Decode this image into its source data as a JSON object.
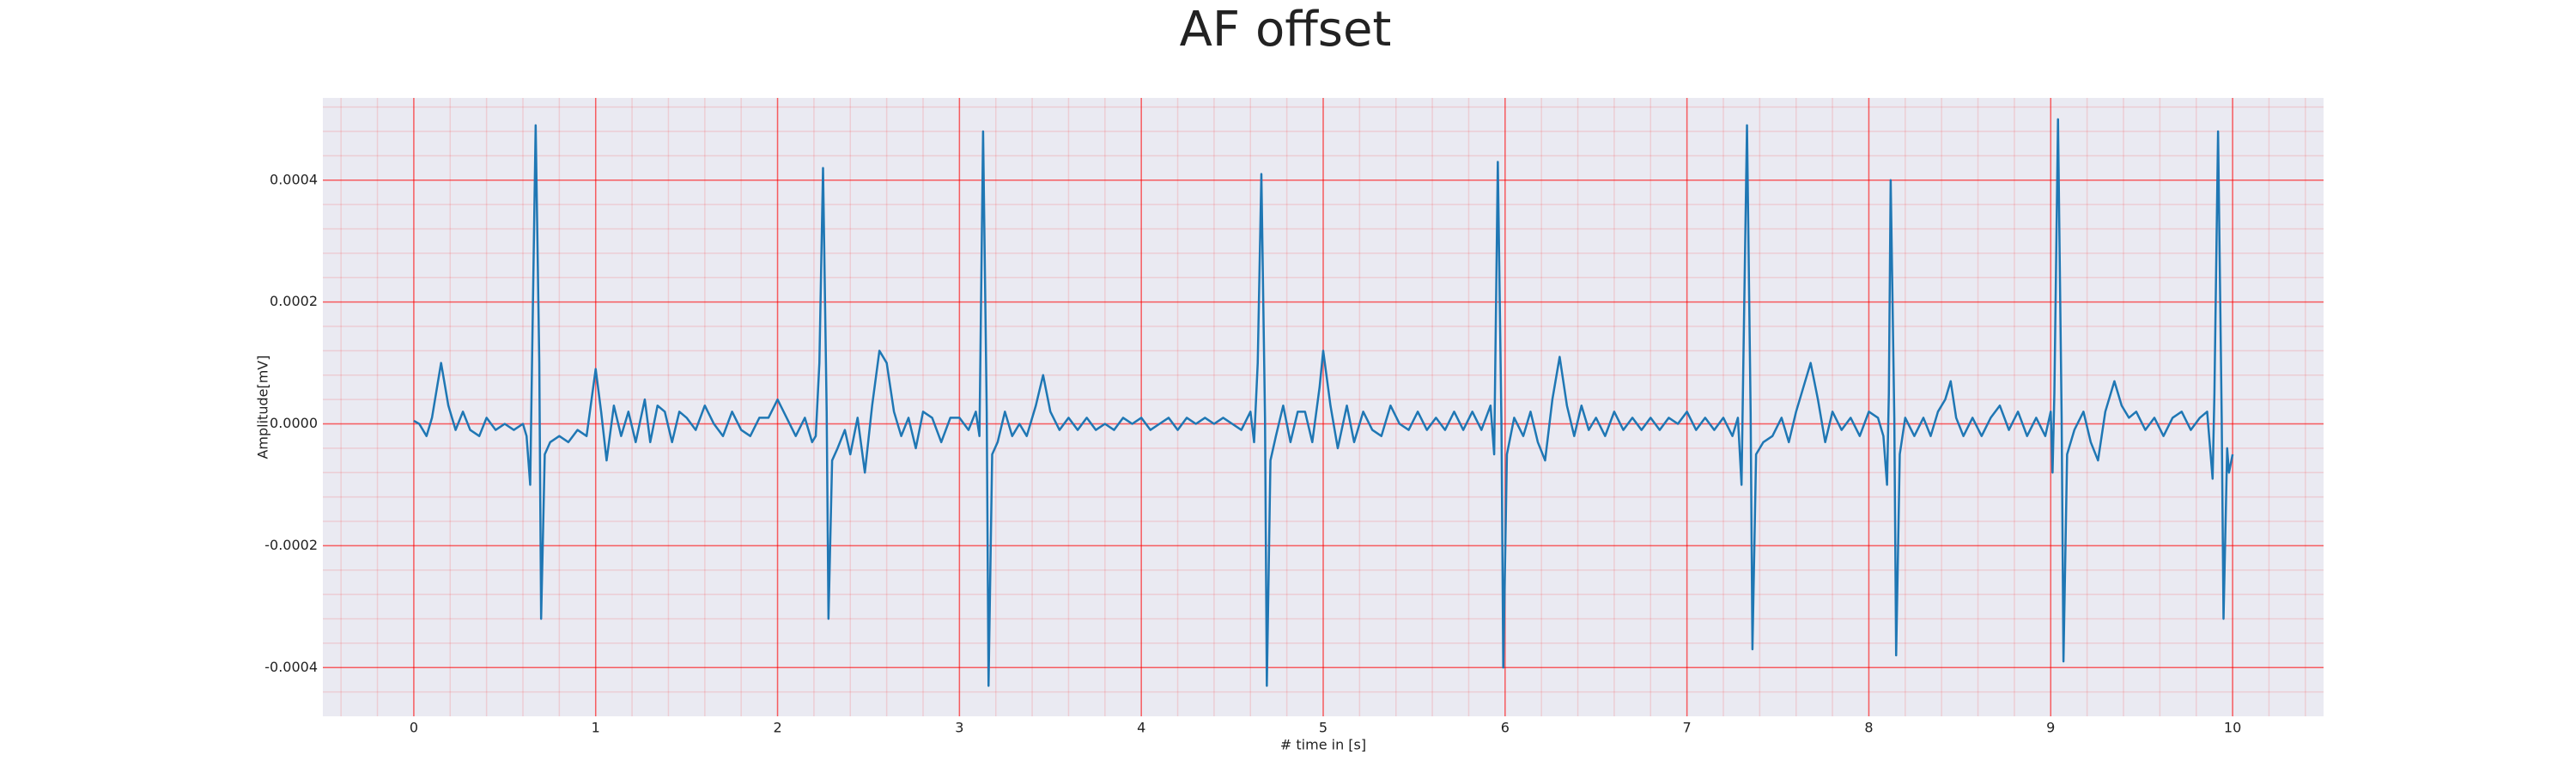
{
  "chart_data": {
    "type": "line",
    "title": "AF offset",
    "xlabel": "# time in [s]",
    "ylabel": "Amplitude[mV]",
    "x": [
      0,
      0.03,
      0.07,
      0.1,
      0.15,
      0.19,
      0.23,
      0.27,
      0.31,
      0.36,
      0.4,
      0.45,
      0.5,
      0.55,
      0.6,
      0.62,
      0.64,
      0.65,
      0.67,
      0.69,
      0.7,
      0.72,
      0.75,
      0.8,
      0.85,
      0.9,
      0.95,
      1,
      1.03,
      1.06,
      1.1,
      1.14,
      1.18,
      1.22,
      1.27,
      1.3,
      1.34,
      1.38,
      1.42,
      1.46,
      1.5,
      1.55,
      1.6,
      1.65,
      1.7,
      1.75,
      1.8,
      1.85,
      1.9,
      1.95,
      2,
      2.05,
      2.1,
      2.15,
      2.19,
      2.21,
      2.23,
      2.25,
      2.27,
      2.28,
      2.3,
      2.33,
      2.37,
      2.4,
      2.44,
      2.48,
      2.52,
      2.56,
      2.6,
      2.64,
      2.68,
      2.72,
      2.76,
      2.8,
      2.85,
      2.9,
      2.95,
      3,
      3.05,
      3.09,
      3.11,
      3.13,
      3.15,
      3.16,
      3.18,
      3.21,
      3.25,
      3.29,
      3.33,
      3.37,
      3.42,
      3.46,
      3.5,
      3.55,
      3.6,
      3.65,
      3.7,
      3.75,
      3.8,
      3.85,
      3.9,
      3.95,
      4,
      4.05,
      4.1,
      4.15,
      4.2,
      4.25,
      4.3,
      4.35,
      4.4,
      4.45,
      4.5,
      4.55,
      4.6,
      4.62,
      4.64,
      4.66,
      4.68,
      4.69,
      4.71,
      4.74,
      4.78,
      4.82,
      4.86,
      4.9,
      4.94,
      4.98,
      5,
      5.04,
      5.08,
      5.13,
      5.17,
      5.22,
      5.27,
      5.32,
      5.37,
      5.42,
      5.47,
      5.52,
      5.57,
      5.62,
      5.67,
      5.72,
      5.77,
      5.82,
      5.87,
      5.92,
      5.94,
      5.96,
      5.98,
      5.99,
      6.01,
      6.05,
      6.1,
      6.14,
      6.18,
      6.22,
      6.26,
      6.3,
      6.34,
      6.38,
      6.42,
      6.46,
      6.5,
      6.55,
      6.6,
      6.65,
      6.7,
      6.75,
      6.8,
      6.85,
      6.9,
      6.95,
      7,
      7.05,
      7.1,
      7.15,
      7.2,
      7.25,
      7.28,
      7.3,
      7.31,
      7.33,
      7.35,
      7.36,
      7.38,
      7.42,
      7.47,
      7.52,
      7.56,
      7.6,
      7.64,
      7.68,
      7.72,
      7.76,
      7.8,
      7.85,
      7.9,
      7.95,
      8,
      8.05,
      8.08,
      8.1,
      8.11,
      8.12,
      8.14,
      8.15,
      8.17,
      8.2,
      8.25,
      8.3,
      8.34,
      8.38,
      8.42,
      8.45,
      8.48,
      8.52,
      8.57,
      8.62,
      8.67,
      8.72,
      8.77,
      8.82,
      8.87,
      8.92,
      8.97,
      9,
      9.01,
      9.02,
      9.04,
      9.06,
      9.07,
      9.09,
      9.13,
      9.18,
      9.22,
      9.26,
      9.3,
      9.35,
      9.39,
      9.43,
      9.47,
      9.52,
      9.57,
      9.62,
      9.67,
      9.72,
      9.77,
      9.82,
      9.86,
      9.89,
      9.9,
      9.92,
      9.94,
      9.95,
      9.97,
      9.98,
      10
    ],
    "series": [
      {
        "color": "#1f77b4",
        "values": [
          5e-06,
          0,
          -2e-05,
          1e-05,
          0.0001,
          3e-05,
          -1e-05,
          2e-05,
          -1e-05,
          -2e-05,
          1e-05,
          -1e-05,
          0,
          -1e-05,
          0,
          -2e-05,
          -0.0001,
          0.0001,
          0.00049,
          0.0001,
          -0.00032,
          -5e-05,
          -3e-05,
          -2e-05,
          -3e-05,
          -1e-05,
          -2e-05,
          9e-05,
          2e-05,
          -6e-05,
          3e-05,
          -2e-05,
          2e-05,
          -3e-05,
          4e-05,
          -3e-05,
          3e-05,
          2e-05,
          -3e-05,
          2e-05,
          1e-05,
          -1e-05,
          3e-05,
          0,
          -2e-05,
          2e-05,
          -1e-05,
          -2e-05,
          1e-05,
          1e-05,
          4e-05,
          1e-05,
          -2e-05,
          1e-05,
          -3e-05,
          -2e-05,
          0.0001,
          0.00042,
          2e-05,
          -0.00032,
          -6e-05,
          -4e-05,
          -1e-05,
          -5e-05,
          1e-05,
          -8e-05,
          3e-05,
          0.00012,
          0.0001,
          2e-05,
          -2e-05,
          1e-05,
          -4e-05,
          2e-05,
          1e-05,
          -3e-05,
          1e-05,
          1e-05,
          -1e-05,
          2e-05,
          -2e-05,
          0.00048,
          2e-05,
          -0.00043,
          -5e-05,
          -3e-05,
          2e-05,
          -2e-05,
          0,
          -2e-05,
          3e-05,
          8e-05,
          2e-05,
          -1e-05,
          1e-05,
          -1e-05,
          1e-05,
          -1e-05,
          0,
          -1e-05,
          1e-05,
          0,
          1e-05,
          -1e-05,
          0,
          1e-05,
          -1e-05,
          1e-05,
          0,
          1e-05,
          0,
          1e-05,
          0,
          -1e-05,
          2e-05,
          -3e-05,
          0.0001,
          0.00041,
          1e-05,
          -0.00043,
          -6e-05,
          -2e-05,
          3e-05,
          -3e-05,
          2e-05,
          2e-05,
          -3e-05,
          6e-05,
          0.00012,
          3e-05,
          -4e-05,
          3e-05,
          -3e-05,
          2e-05,
          -1e-05,
          -2e-05,
          3e-05,
          0,
          -1e-05,
          2e-05,
          -1e-05,
          1e-05,
          -1e-05,
          2e-05,
          -1e-05,
          2e-05,
          -1e-05,
          3e-05,
          -5e-05,
          0.00043,
          0,
          -0.0004,
          -5e-05,
          1e-05,
          -2e-05,
          2e-05,
          -3e-05,
          -6e-05,
          4e-05,
          0.00011,
          3e-05,
          -2e-05,
          3e-05,
          -1e-05,
          1e-05,
          -2e-05,
          2e-05,
          -1e-05,
          1e-05,
          -1e-05,
          1e-05,
          -1e-05,
          1e-05,
          0,
          2e-05,
          -1e-05,
          1e-05,
          -1e-05,
          1e-05,
          -2e-05,
          1e-05,
          -0.0001,
          0.0001,
          0.00049,
          2e-05,
          -0.00037,
          -5e-05,
          -3e-05,
          -2e-05,
          1e-05,
          -3e-05,
          2e-05,
          6e-05,
          0.0001,
          4e-05,
          -3e-05,
          2e-05,
          -1e-05,
          1e-05,
          -2e-05,
          2e-05,
          1e-05,
          -2e-05,
          -0.0001,
          5e-05,
          0.0004,
          1e-05,
          -0.00038,
          -5e-05,
          1e-05,
          -2e-05,
          1e-05,
          -2e-05,
          2e-05,
          4e-05,
          7e-05,
          1e-05,
          -2e-05,
          1e-05,
          -2e-05,
          1e-05,
          3e-05,
          -1e-05,
          2e-05,
          -2e-05,
          1e-05,
          -2e-05,
          2e-05,
          -8e-05,
          5e-05,
          0.0005,
          1e-05,
          -0.00039,
          -5e-05,
          -1e-05,
          2e-05,
          -3e-05,
          -6e-05,
          2e-05,
          7e-05,
          3e-05,
          1e-05,
          2e-05,
          -1e-05,
          1e-05,
          -2e-05,
          1e-05,
          2e-05,
          -1e-05,
          1e-05,
          2e-05,
          -9e-05,
          5e-05,
          0.00048,
          1e-05,
          -0.00032,
          -4e-05,
          -8e-05,
          -5e-05
        ]
      }
    ],
    "xlim": [
      -0.5,
      10.5
    ],
    "xticks": [
      0,
      1,
      2,
      3,
      4,
      5,
      6,
      7,
      8,
      9,
      10
    ],
    "ylim": [
      -0.00048,
      0.000535
    ],
    "yticks": [
      -0.0004,
      -0.0002,
      {
        "value": 0,
        "label": "0.0000"
      },
      0.0002,
      0.0004
    ],
    "grid": true,
    "minor_grid": true,
    "grid_color": "#ff0000"
  }
}
